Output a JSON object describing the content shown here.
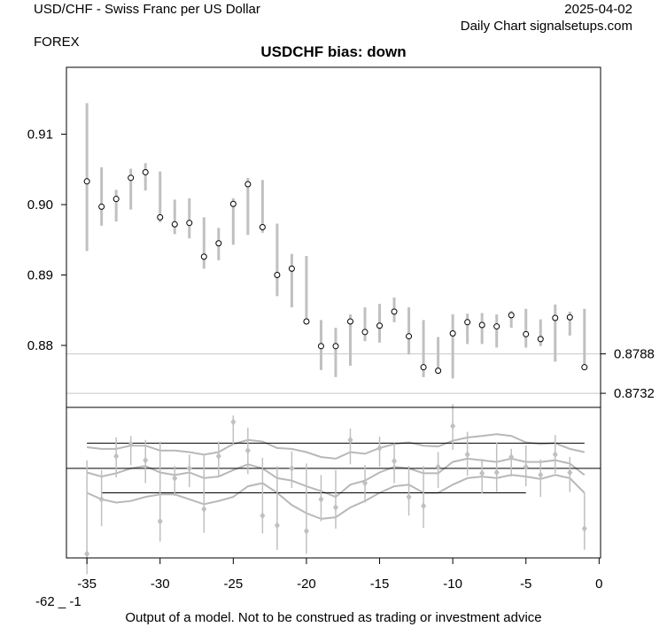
{
  "header": {
    "title": "USD/CHF - Swiss Franc per US Dollar",
    "category": "FOREX",
    "date": "2025-04-02",
    "source": "Daily Chart signalsetups.com",
    "bias": "USDCHF bias: down"
  },
  "footer": {
    "left_note": "-62 _ -1",
    "disclaimer": "Output of a model. Not to be construed as trading or investment advice"
  },
  "chart_data": {
    "type": "scatter",
    "title": "USDCHF bias: down",
    "x_ticks": [
      -35,
      -30,
      -25,
      -20,
      -15,
      -10,
      -5,
      0
    ],
    "xlim": [
      -36.4,
      0.1
    ],
    "price": {
      "y_ticks": [
        0.88,
        0.89,
        0.9,
        0.91
      ],
      "ylim": [
        0.8712,
        0.9195
      ],
      "levels": [
        {
          "value": 0.8788,
          "label": "0.8788"
        },
        {
          "value": 0.8732,
          "label": "0.8732"
        }
      ],
      "x": [
        -35,
        -34,
        -33,
        -32,
        -31,
        -30,
        -29,
        -28,
        -27,
        -26,
        -25,
        -24,
        -23,
        -22,
        -21,
        -20,
        -19,
        -18,
        -17,
        -16,
        -15,
        -14,
        -13,
        -12,
        -11,
        -10,
        -9,
        -8,
        -7,
        -6,
        -5,
        -4,
        -3,
        -2,
        -1
      ],
      "close": [
        0.9033,
        0.8997,
        0.9008,
        0.9038,
        0.9046,
        0.8982,
        0.8972,
        0.8974,
        0.8926,
        0.8945,
        0.9001,
        0.9029,
        0.8968,
        0.89,
        0.8909,
        0.8834,
        0.8799,
        0.8799,
        0.8834,
        0.8819,
        0.8828,
        0.8848,
        0.8813,
        0.8769,
        0.8764,
        0.8817,
        0.8833,
        0.8829,
        0.8827,
        0.8843,
        0.8816,
        0.8809,
        0.8839,
        0.884,
        0.8769
      ],
      "high": [
        0.9144,
        0.9053,
        0.9021,
        0.9051,
        0.9059,
        0.9047,
        0.9007,
        0.9009,
        0.8982,
        0.8967,
        0.9009,
        0.9038,
        0.9035,
        0.8973,
        0.893,
        0.8927,
        0.8836,
        0.8825,
        0.8844,
        0.8854,
        0.8859,
        0.8868,
        0.8854,
        0.8836,
        0.8812,
        0.8844,
        0.8845,
        0.8846,
        0.8844,
        0.8849,
        0.8852,
        0.8837,
        0.8858,
        0.8848,
        0.8852
      ],
      "low": [
        0.8934,
        0.897,
        0.8976,
        0.8993,
        0.902,
        0.8975,
        0.8958,
        0.8952,
        0.8909,
        0.8921,
        0.8943,
        0.8957,
        0.896,
        0.887,
        0.8854,
        0.8832,
        0.8765,
        0.8755,
        0.8771,
        0.8806,
        0.8804,
        0.8833,
        0.8787,
        0.8755,
        0.8762,
        0.8753,
        0.8802,
        0.8802,
        0.8797,
        0.8825,
        0.8797,
        0.8799,
        0.8777,
        0.8814,
        0.8765
      ]
    },
    "oscillator": {
      "ylim": [
        -1.1,
        0.75
      ],
      "zero_line": 0,
      "upper_line": 0.31,
      "lower_line": -0.3,
      "lower_line_x": [
        -34,
        -5
      ],
      "x": [
        -35,
        -34,
        -33,
        -32,
        -31,
        -30,
        -29,
        -28,
        -27,
        -26,
        -25,
        -24,
        -23,
        -22,
        -21,
        -20,
        -19,
        -18,
        -17,
        -16,
        -15,
        -14,
        -13,
        -12,
        -11,
        -10,
        -9,
        -8,
        -7,
        -6,
        -5,
        -4,
        -3,
        -2,
        -1
      ],
      "value": [
        -1.05,
        -0.38,
        0.15,
        0.3,
        0.1,
        -0.65,
        -0.12,
        0.0,
        -0.5,
        0.15,
        0.57,
        0.22,
        -0.58,
        -0.7,
        0.0,
        -0.77,
        -0.38,
        -0.48,
        0.35,
        -0.18,
        0.25,
        0.09,
        -0.35,
        -0.46,
        0.02,
        0.52,
        0.17,
        -0.06,
        -0.05,
        0.14,
        0.02,
        -0.08,
        0.17,
        -0.05,
        -0.74
      ],
      "high": [
        0.1,
        -0.02,
        0.38,
        0.4,
        0.35,
        0.33,
        0.03,
        0.17,
        0.17,
        0.33,
        0.65,
        0.5,
        0.13,
        0.03,
        0.21,
        0.06,
        -0.08,
        -0.02,
        0.49,
        0.04,
        0.39,
        0.31,
        0.03,
        0.03,
        0.2,
        0.79,
        0.45,
        0.12,
        0.32,
        0.24,
        0.28,
        0.11,
        0.41,
        0.14,
        -0.3
      ],
      "low": [
        -1.3,
        -0.71,
        -0.11,
        0.04,
        -0.18,
        -0.9,
        -0.34,
        -0.23,
        -0.79,
        -0.1,
        0.29,
        -0.07,
        -0.8,
        -1.0,
        -0.24,
        -1.05,
        -0.65,
        -0.74,
        0.05,
        -0.42,
        0.02,
        -0.18,
        -0.58,
        -0.73,
        -0.24,
        0.23,
        -0.09,
        -0.31,
        -0.29,
        -0.1,
        -0.22,
        -0.35,
        -0.06,
        -0.29,
        -1.0
      ],
      "band_upper": [
        0.26,
        0.24,
        0.24,
        0.28,
        0.28,
        0.22,
        0.22,
        0.2,
        0.17,
        0.2,
        0.3,
        0.35,
        0.33,
        0.25,
        0.24,
        0.2,
        0.14,
        0.12,
        0.2,
        0.18,
        0.25,
        0.3,
        0.32,
        0.28,
        0.27,
        0.34,
        0.38,
        0.4,
        0.42,
        0.4,
        0.32,
        0.3,
        0.31,
        0.24,
        0.2
      ],
      "band_mid": [
        -0.05,
        -0.1,
        -0.06,
        0.0,
        0.03,
        -0.05,
        -0.08,
        -0.05,
        -0.12,
        -0.1,
        -0.02,
        0.05,
        0.0,
        -0.12,
        -0.15,
        -0.22,
        -0.28,
        -0.35,
        -0.2,
        -0.15,
        -0.05,
        0.02,
        0.0,
        -0.06,
        -0.06,
        0.08,
        0.12,
        0.1,
        0.08,
        0.12,
        0.08,
        0.08,
        0.1,
        0.06,
        -0.08
      ],
      "band_lower": [
        -0.3,
        -0.38,
        -0.42,
        -0.4,
        -0.35,
        -0.32,
        -0.32,
        -0.38,
        -0.44,
        -0.4,
        -0.35,
        -0.22,
        -0.18,
        -0.3,
        -0.45,
        -0.55,
        -0.62,
        -0.6,
        -0.48,
        -0.4,
        -0.3,
        -0.22,
        -0.2,
        -0.3,
        -0.3,
        -0.2,
        -0.12,
        -0.1,
        -0.12,
        -0.08,
        -0.1,
        -0.13,
        -0.08,
        -0.12,
        -0.3
      ]
    },
    "colors": {
      "bar": "#c0c0c0",
      "band": "#b8b8b8",
      "level_line": "#c8c8c8",
      "axis": "#000000"
    }
  }
}
